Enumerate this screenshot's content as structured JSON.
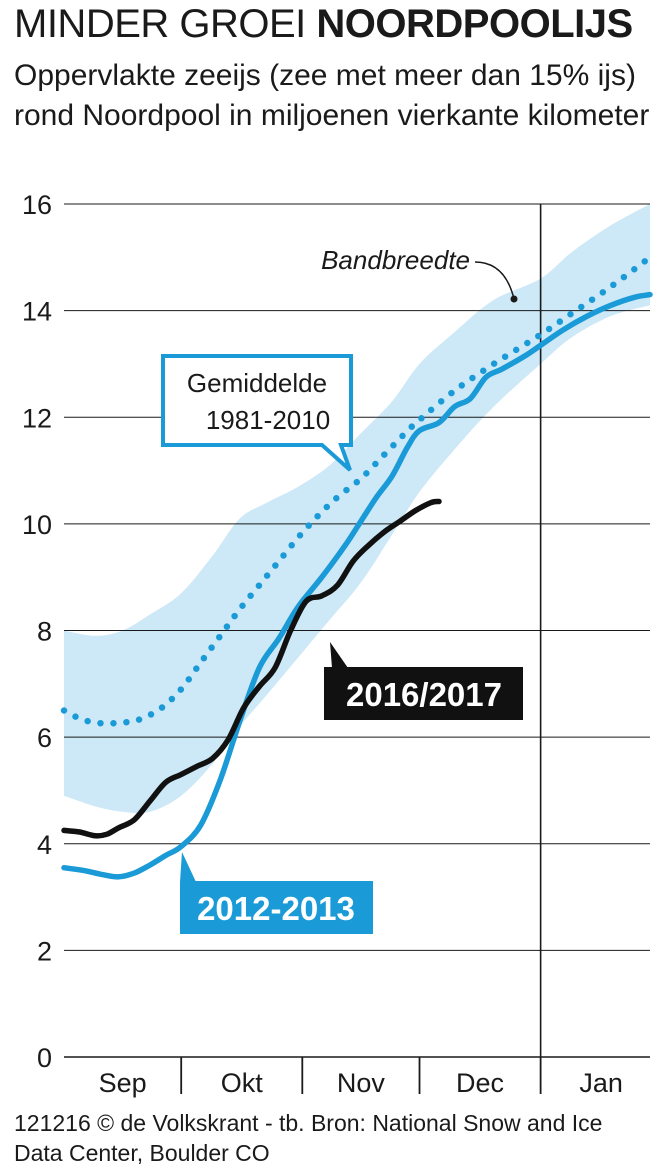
{
  "header": {
    "title_light": "MINDER GROEI",
    "title_bold": "NOORDPOOLIJS",
    "subtitle": "Oppervlakte zeeijs (zee met meer dan 15% ijs) rond Noordpool in miljoenen vierkante kilometer"
  },
  "footer": {
    "source": "121216 © de Volkskrant - tb. Bron: National Snow and Ice Data Center, Boulder CO"
  },
  "colors": {
    "band": "#cde8f7",
    "average": "#1a9ad6",
    "series_2012": "#1a9ad6",
    "series_2016": "#111111",
    "grid": "#1a1a1a"
  },
  "chart_data": {
    "type": "line",
    "title": "",
    "xlabel": "",
    "ylabel": "",
    "ylim": [
      0,
      16
    ],
    "yticks": [
      0,
      2,
      4,
      6,
      8,
      10,
      12,
      14,
      16
    ],
    "grid": true,
    "x_unit": "days since 1 September",
    "xlim": [
      0,
      150
    ],
    "months": [
      {
        "label": "Sep",
        "center": 15
      },
      {
        "label": "Okt",
        "center": 45.5
      },
      {
        "label": "Nov",
        "center": 76
      },
      {
        "label": "Dec",
        "center": 106.5
      },
      {
        "label": "Jan",
        "center": 137.5
      }
    ],
    "month_boundaries": [
      30,
      61,
      91,
      122
    ],
    "highlight_boundary": 122,
    "annotations": {
      "band": "Bandbreedte",
      "average_line1": "Gemiddelde",
      "average_line2": "1981-2010",
      "tag_2016": "2016/2017",
      "tag_2012": "2012-2013"
    },
    "band": {
      "name": "Bandbreedte",
      "x": [
        0,
        8,
        15,
        22,
        30,
        38,
        45,
        52,
        60,
        68,
        76,
        84,
        91,
        100,
        110,
        122,
        130,
        140,
        150
      ],
      "upper": [
        8.0,
        7.9,
        8.0,
        8.3,
        8.7,
        9.4,
        10.1,
        10.4,
        10.7,
        11.1,
        11.7,
        12.3,
        13.0,
        13.6,
        14.2,
        14.6,
        15.1,
        15.6,
        16.0
      ],
      "lower": [
        4.9,
        4.7,
        4.6,
        4.6,
        4.9,
        5.5,
        6.2,
        6.8,
        7.5,
        8.2,
        8.9,
        9.8,
        10.6,
        11.4,
        12.2,
        13.0,
        13.5,
        13.9,
        14.1
      ]
    },
    "series": [
      {
        "name": "Gemiddelde 1981-2010",
        "style": "dotted",
        "x": [
          0,
          4,
          8,
          12,
          16,
          20,
          25,
          30,
          35,
          40,
          45,
          50,
          55,
          60,
          65,
          70,
          76,
          82,
          88,
          91,
          100,
          110,
          122,
          130,
          140,
          150
        ],
        "values": [
          6.5,
          6.35,
          6.27,
          6.26,
          6.28,
          6.35,
          6.55,
          6.9,
          7.4,
          7.9,
          8.4,
          8.85,
          9.3,
          9.75,
          10.15,
          10.5,
          10.85,
          11.3,
          11.75,
          11.95,
          12.5,
          13.0,
          13.55,
          13.95,
          14.45,
          15.0
        ]
      },
      {
        "name": "2012-2013",
        "style": "solid",
        "x": [
          0,
          5,
          10,
          14,
          18,
          22,
          26,
          30,
          35,
          40,
          45,
          50,
          55,
          60,
          66,
          72,
          76,
          80,
          84,
          88,
          91,
          96,
          100,
          104,
          108,
          112,
          118,
          122,
          128,
          134,
          140,
          146,
          150
        ],
        "values": [
          3.55,
          3.5,
          3.42,
          3.38,
          3.45,
          3.6,
          3.78,
          3.95,
          4.35,
          5.2,
          6.3,
          7.3,
          7.85,
          8.45,
          9.0,
          9.6,
          10.05,
          10.5,
          10.9,
          11.45,
          11.75,
          11.9,
          12.2,
          12.35,
          12.75,
          12.9,
          13.15,
          13.35,
          13.65,
          13.9,
          14.1,
          14.25,
          14.3
        ]
      },
      {
        "name": "2016/2017",
        "style": "solid",
        "x": [
          0,
          4,
          8,
          11,
          14,
          18,
          22,
          26,
          30,
          34,
          38,
          42,
          46,
          50,
          54,
          58,
          62,
          66,
          70,
          74,
          78,
          82,
          86,
          90,
          94,
          96
        ],
        "values": [
          4.25,
          4.22,
          4.15,
          4.18,
          4.3,
          4.45,
          4.8,
          5.15,
          5.3,
          5.45,
          5.6,
          5.95,
          6.55,
          6.95,
          7.3,
          8.0,
          8.55,
          8.65,
          8.85,
          9.3,
          9.6,
          9.85,
          10.05,
          10.25,
          10.4,
          10.42
        ]
      }
    ]
  }
}
